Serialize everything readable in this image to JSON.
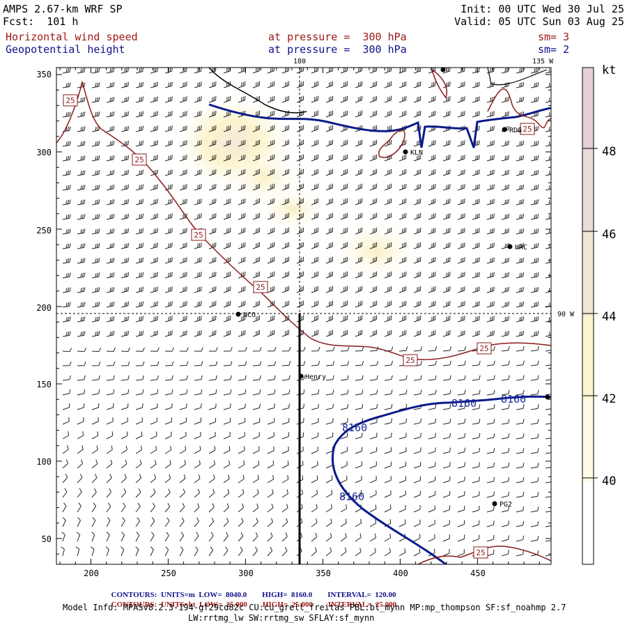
{
  "header": {
    "title": "AMPS 2.67-km WRF SP",
    "forecast": "Fcst:  101 h",
    "init": "Init: 00 UTC Wed 30 Jul 25",
    "valid": "Valid: 05 UTC Sun 03 Aug 25",
    "field1_name": "Horizontal wind speed",
    "field1_level": "at pressure =  300 hPa",
    "field1_sm": "sm= 3",
    "field2_name": "Geopotential height",
    "field2_level": "at pressure =  300 hPa",
    "field2_sm": "sm= 2"
  },
  "map": {
    "lon_labels": [
      "180",
      "135 W",
      "90 W"
    ],
    "x_ticks": [
      "200",
      "250",
      "300",
      "350",
      "400",
      "450"
    ],
    "y_ticks": [
      "350",
      "300",
      "250",
      "200",
      "150",
      "100",
      "50"
    ],
    "stations": [
      "NCO",
      "Henry",
      "KLN",
      "RDG",
      "HRC",
      "PG2"
    ],
    "contour_labels": [
      "8160",
      "25"
    ],
    "colors": {
      "wind_contour": "#8b1a1a",
      "height_contour": "#0a1a8a",
      "fill_light": "#fbf6c8",
      "fill_mid": "#f5e6b8"
    }
  },
  "colorbar": {
    "unit": "kt",
    "labels": [
      "48",
      "46",
      "44",
      "42",
      "40"
    ],
    "colors": [
      "#ffffff",
      "#fdfbe3",
      "#faf4cf",
      "#f3e5d3",
      "#eadbd8",
      "#e6cfd6"
    ]
  },
  "footer": {
    "row1": [
      {
        "key": "CONTOURS:",
        "val": "UNITS=m"
      },
      {
        "key": "LOW=",
        "val": "8040.0"
      },
      {
        "key": "HIGH=",
        "val": "8160.0"
      },
      {
        "key": "INTERVAL=",
        "val": "120.00"
      }
    ],
    "row2": [
      {
        "key": "CONTOURS:",
        "val": "UNITS=kt"
      },
      {
        "key": "LOW=",
        "val": "25.000"
      },
      {
        "key": "HIGH=",
        "val": "25.000"
      },
      {
        "key": "INTERVAL=",
        "val": "25.000"
      }
    ],
    "model_info": "Model Info: MPASv8.2.3-194-gf29cd82c CU:cu_grell_freitas PBL:bl_mynn MP:mp_thompson SF:sf_noahmp 2.7",
    "model_info2": "LW:rrtmg_lw SW:rrtmg_sw SFLAY:sf_mynn"
  }
}
